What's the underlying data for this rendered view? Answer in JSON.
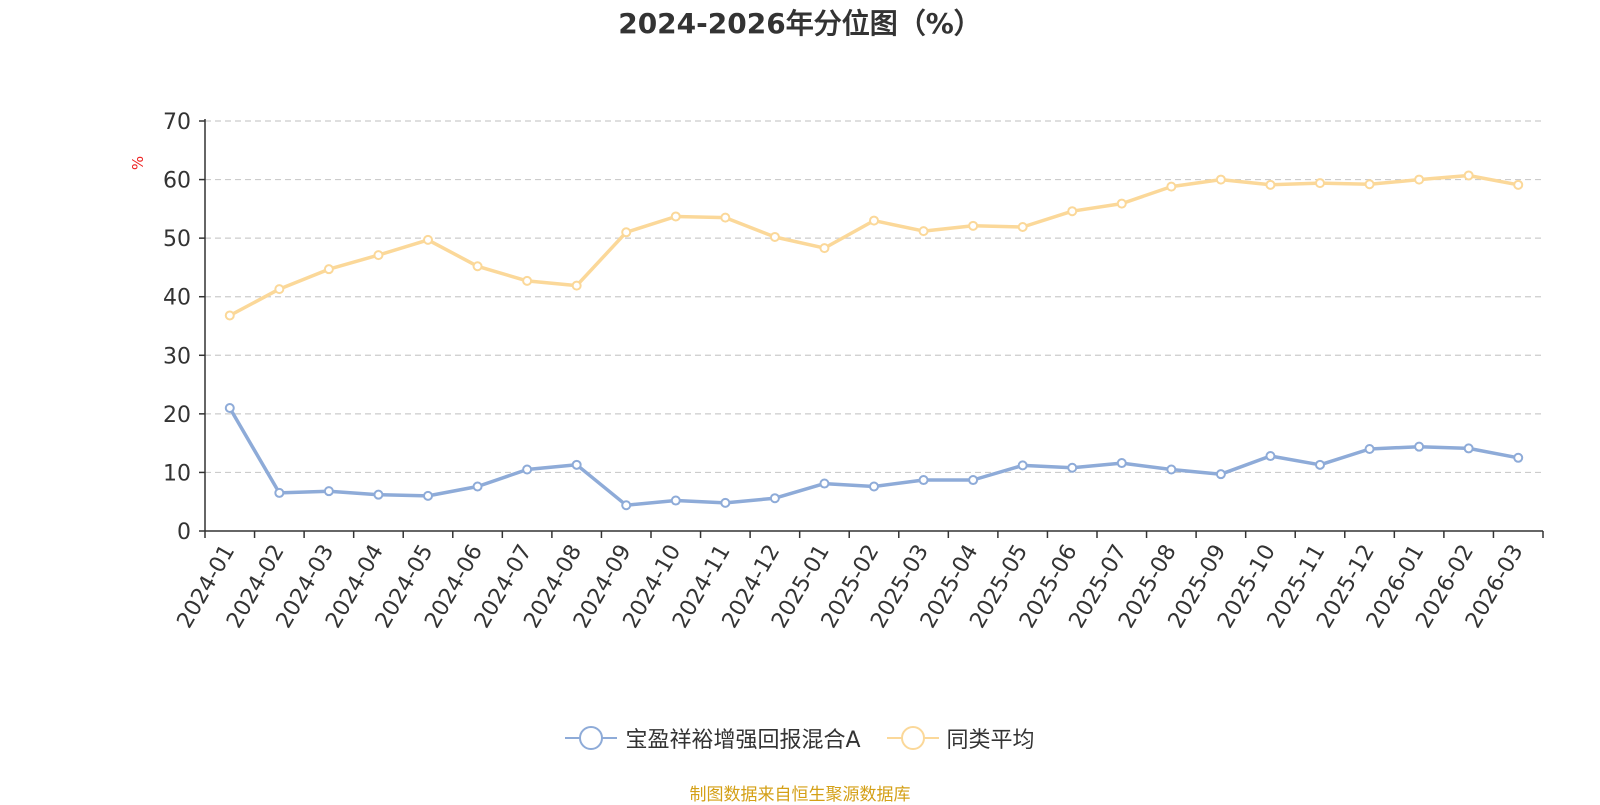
{
  "chart_data": {
    "type": "line",
    "title": "2024-2026年分位图（%）",
    "ylabel": "%",
    "xlabel": "",
    "ylim": [
      0,
      70
    ],
    "yticks": [
      0,
      10,
      20,
      30,
      40,
      50,
      60,
      70
    ],
    "grid": true,
    "legend_position": "bottom",
    "categories": [
      "2024-01",
      "2024-02",
      "2024-03",
      "2024-04",
      "2024-05",
      "2024-06",
      "2024-07",
      "2024-08",
      "2024-09",
      "2024-10",
      "2024-11",
      "2024-12",
      "2025-01",
      "2025-02",
      "2025-03",
      "2025-04",
      "2025-05",
      "2025-06",
      "2025-07",
      "2025-08",
      "2025-09",
      "2025-10",
      "2025-11",
      "2025-12",
      "2026-01",
      "2026-02",
      "2026-03"
    ],
    "series": [
      {
        "name": "宝盈祥裕增强回报混合A",
        "color": "#8eabd8",
        "values": [
          21.0,
          6.5,
          6.8,
          6.2,
          6.0,
          7.6,
          10.5,
          11.3,
          4.4,
          5.2,
          4.8,
          5.6,
          8.1,
          7.6,
          8.7,
          8.7,
          11.2,
          10.8,
          11.6,
          10.5,
          9.7,
          12.8,
          11.3,
          14.0,
          14.4,
          14.1,
          12.5
        ]
      },
      {
        "name": "同类平均",
        "color": "#fbd899",
        "values": [
          36.8,
          41.3,
          44.7,
          47.1,
          49.7,
          45.2,
          42.7,
          41.9,
          51.0,
          53.7,
          53.5,
          50.2,
          48.3,
          53.0,
          51.2,
          52.1,
          51.9,
          54.6,
          55.9,
          58.8,
          60.0,
          59.1,
          59.4,
          59.2,
          60.0,
          60.7,
          59.1
        ]
      }
    ]
  },
  "source_note": "制图数据来自恒生聚源数据库"
}
